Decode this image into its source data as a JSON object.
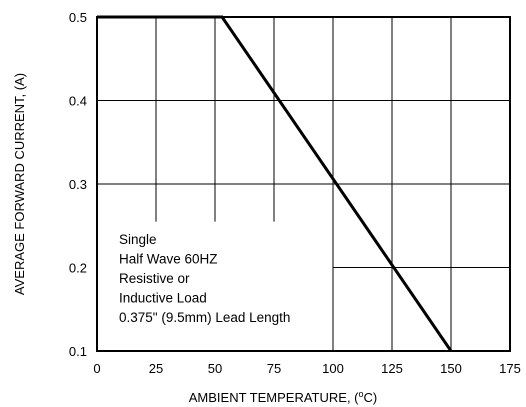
{
  "chart_data": {
    "type": "line",
    "xlabel": "AMBIENT TEMPERATURE, (",
    "xlabel_sup": "o",
    "xlabel_tail": "C)",
    "ylabel": "AVERAGE FORWARD CURRENT, (A)",
    "xlim": [
      0,
      175
    ],
    "ylim": [
      0.1,
      0.5
    ],
    "x_ticks": [
      0,
      25,
      50,
      75,
      100,
      125,
      150,
      175
    ],
    "y_ticks": [
      0.1,
      0.2,
      0.3,
      0.4,
      0.5
    ],
    "x_tick_labels": [
      "0",
      "25",
      "50",
      "75",
      "100",
      "125",
      "150",
      "175"
    ],
    "y_tick_labels": [
      "0.1",
      "0.2",
      "0.3",
      "0.4",
      "0.5"
    ],
    "grid": true,
    "series": [
      {
        "x": [
          0,
          53,
          150
        ],
        "y": [
          0.5,
          0.5,
          0.1
        ]
      }
    ],
    "annotation_lines": [
      "Single",
      "Half Wave 60HZ",
      "Resistive or",
      "Inductive Load",
      "0.375\" (9.5mm) Lead Length"
    ]
  }
}
